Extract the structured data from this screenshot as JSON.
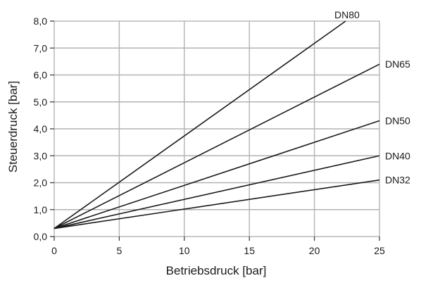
{
  "chart_data": {
    "type": "line",
    "title": "",
    "xlabel": "Betriebsdruck [bar]",
    "ylabel": "Steuerdruck [bar]",
    "xlim": [
      0,
      25
    ],
    "ylim": [
      0,
      8
    ],
    "x_ticks": [
      0,
      5,
      10,
      15,
      20,
      25
    ],
    "x_tick_labels": [
      "0",
      "5",
      "10",
      "15",
      "20",
      "25"
    ],
    "y_ticks": [
      0,
      1,
      2,
      3,
      4,
      5,
      6,
      7,
      8
    ],
    "y_tick_labels": [
      "0,0",
      "1,0",
      "2,0",
      "3,0",
      "4,0",
      "5,0",
      "6,0",
      "7,0",
      "8,0"
    ],
    "grid": true,
    "series": [
      {
        "name": "DN80",
        "x": [
          0,
          22.4
        ],
        "y": [
          0.3,
          8.0
        ]
      },
      {
        "name": "DN65",
        "x": [
          0,
          25
        ],
        "y": [
          0.3,
          6.4
        ]
      },
      {
        "name": "DN50",
        "x": [
          0,
          25
        ],
        "y": [
          0.3,
          4.3
        ]
      },
      {
        "name": "DN40",
        "x": [
          0,
          25
        ],
        "y": [
          0.3,
          3.0
        ]
      },
      {
        "name": "DN32",
        "x": [
          0,
          25
        ],
        "y": [
          0.3,
          2.1
        ]
      }
    ],
    "line_color": "#1a1a1a",
    "grid_color": "#b3b3b3"
  }
}
